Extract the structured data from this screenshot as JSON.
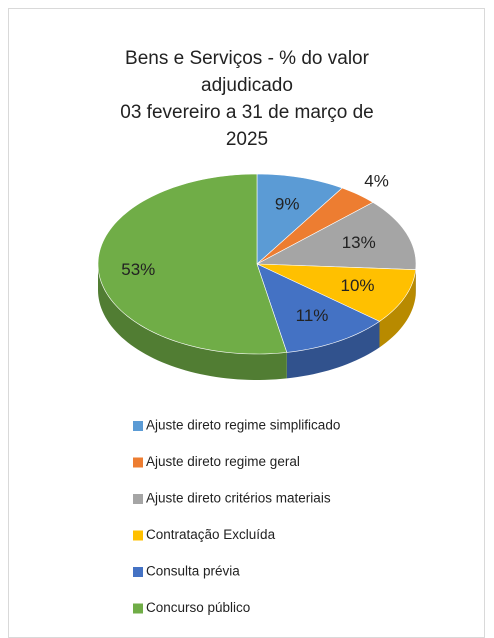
{
  "chart_data": {
    "type": "pie3d",
    "title": "Bens e Serviços - % do valor adjudicado",
    "subtitle": "03 fevereiro a 31 de março de 2025",
    "categories": [
      "Ajuste direto regime simplificado",
      "Ajuste direto regime geral",
      "Ajuste direto critérios materiais",
      "Contratação Excluída",
      "Consulta prévia",
      "Concurso público"
    ],
    "values": [
      9,
      4,
      13,
      10,
      11,
      53
    ],
    "value_labels": [
      "9%",
      "4%",
      "13%",
      "10%",
      "11%",
      "53%"
    ],
    "colors": [
      "#5b9bd5",
      "#ed7d31",
      "#a5a5a5",
      "#ffc000",
      "#4472c4",
      "#70ad47"
    ],
    "legend": "bottom"
  }
}
